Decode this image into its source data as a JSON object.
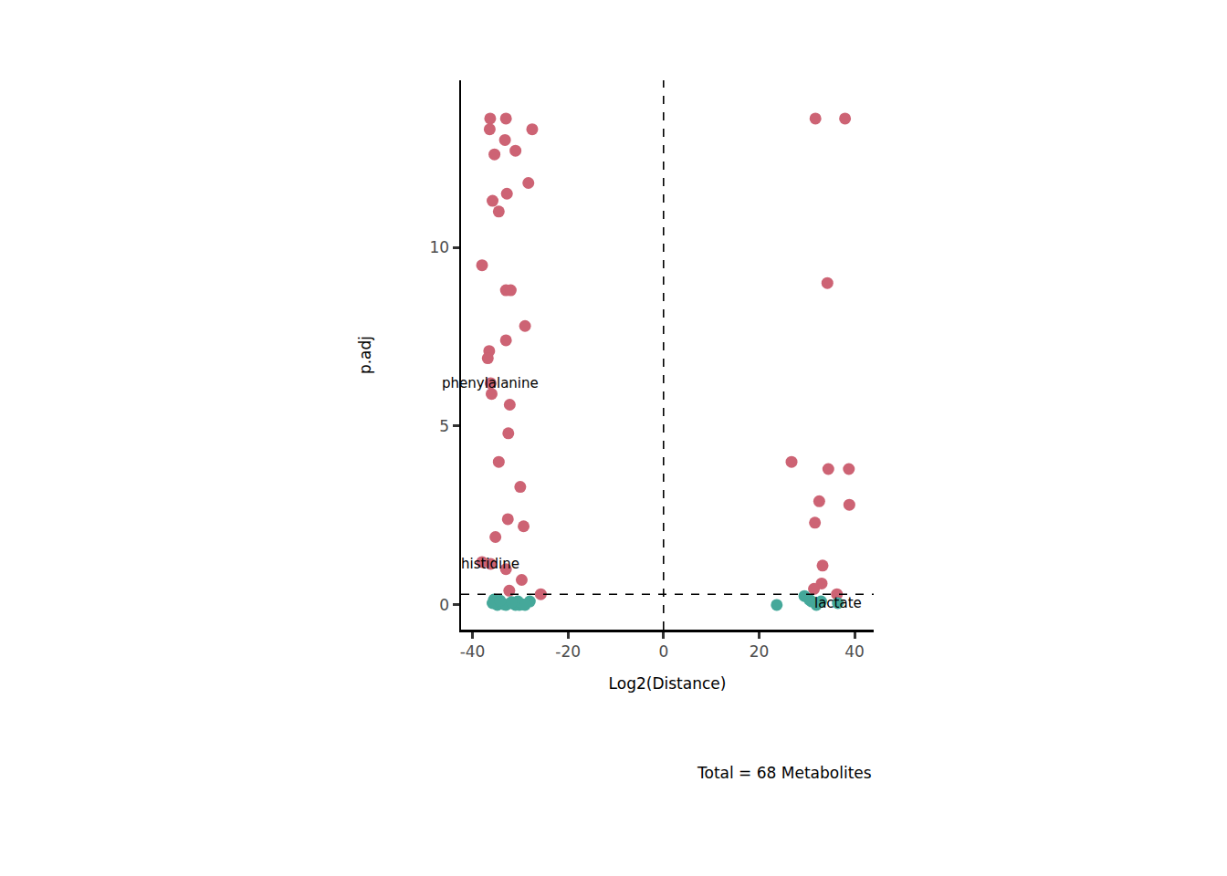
{
  "chart_data": {
    "type": "scatter",
    "x_label": "Log2(Distance)",
    "y_label": "p.adj",
    "caption": "Total = 68 Metabolites",
    "xlim": [
      -42.4,
      44.0
    ],
    "ylim": [
      -0.69,
      14.67
    ],
    "xticks": [
      -40,
      -20,
      0,
      20,
      40
    ],
    "yticks": [
      0,
      5,
      10
    ],
    "grid": false,
    "marker": "circle",
    "reference_lines": {
      "x": 0,
      "y": 0.3,
      "line_style": "dashed"
    },
    "series": [
      {
        "color": "#cd6374",
        "x": [
          -36.3,
          -33,
          -27.5,
          -36.4,
          -33.2,
          -31,
          -35.4,
          -28.3,
          -32.8,
          -35.8,
          -34.5,
          -38,
          -33,
          -32,
          -29,
          -33,
          -36.5,
          -36.8,
          -36.2,
          -36,
          -32.2,
          -32.5,
          -34.5,
          -30,
          -32.6,
          -29.3,
          -35.2,
          -38,
          -36.2,
          -33,
          -29.7,
          -32.3,
          -25.7,
          31.8,
          38,
          34.3,
          26.8,
          34.5,
          38.8,
          32.6,
          38.9,
          31.7,
          33.3,
          33.1,
          31.5,
          36.3
        ],
        "values": [
          13.6,
          13.6,
          13.3,
          13.3,
          13.0,
          12.7,
          12.6,
          11.8,
          11.5,
          11.3,
          11.0,
          9.5,
          8.8,
          8.8,
          7.8,
          7.4,
          7.1,
          6.9,
          6.2,
          5.9,
          5.6,
          4.8,
          4.0,
          3.3,
          2.4,
          2.2,
          1.9,
          1.2,
          1.15,
          1.0,
          0.7,
          0.4,
          0.3,
          13.6,
          13.6,
          9.0,
          4.0,
          3.8,
          3.8,
          2.9,
          2.8,
          2.3,
          1.1,
          0.6,
          0.45,
          0.3
        ]
      },
      {
        "color": "#45a89a",
        "x": [
          -35.5,
          -34.8,
          -33.5,
          -34,
          -31,
          -30.2,
          -29.5,
          -28,
          -32,
          -30.5,
          -35.8,
          -33,
          -31.8,
          -29,
          -34.2,
          23.7,
          29.5,
          31,
          32,
          36.5,
          33,
          30.5
        ],
        "values": [
          0.15,
          0.0,
          0.02,
          0.05,
          0.0,
          0.0,
          0.02,
          0.1,
          0.05,
          0.1,
          0.05,
          0.0,
          0.08,
          0.0,
          0.12,
          0.0,
          0.25,
          0.1,
          0.0,
          0.05,
          0.1,
          0.15
        ]
      }
    ],
    "annotations": [
      {
        "text": "phenylalanine",
        "x": -36.2,
        "y": 6.2
      },
      {
        "text": "histidine",
        "x": -36.2,
        "y": 1.15
      },
      {
        "text": "lactate",
        "x": 36.5,
        "y": 0.05
      }
    ]
  }
}
